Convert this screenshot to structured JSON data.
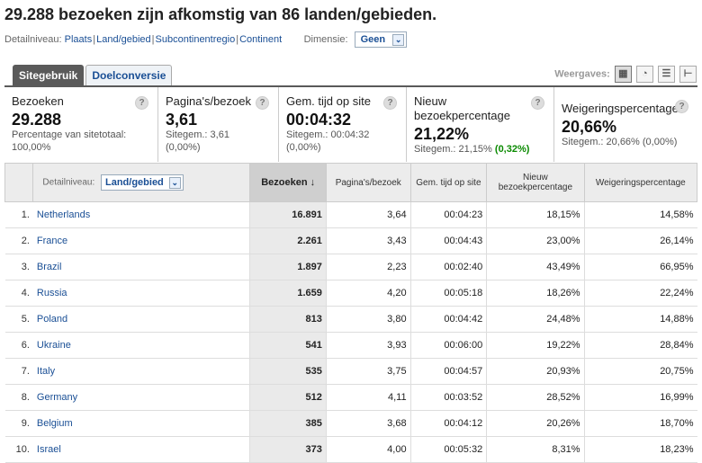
{
  "title": "29.288 bezoeken zijn afkomstig van 86 landen/gebieden.",
  "detail": {
    "label": "Detailniveau:",
    "links": [
      "Plaats",
      "Land/gebied",
      "Subcontinentregio",
      "Continent"
    ],
    "dimension_label": "Dimensie:",
    "dimension_value": "Geen"
  },
  "tabs": [
    "Sitegebruik",
    "Doelconversie"
  ],
  "views_label": "Weergaves:",
  "summary": [
    {
      "label": "Bezoeken",
      "value": "29.288",
      "sub1": "Percentage van sitetotaal:",
      "sub2": "100,00%"
    },
    {
      "label": "Pagina's/bezoek",
      "value": "3,61",
      "sub1": "Sitegem.: 3,61",
      "sub2": "(0,00%)"
    },
    {
      "label": "Gem. tijd op site",
      "value": "00:04:32",
      "sub1": "Sitegem.: 00:04:32",
      "sub2": "(0,00%)"
    },
    {
      "label": "Nieuw bezoekpercentage",
      "value": "21,22%",
      "sub1": "Sitegem.: 21,15%",
      "sub2": "(0,32%)"
    },
    {
      "label": "Weigeringspercentage",
      "value": "20,66%",
      "sub1": "Sitegem.: 20,66% (0,00%)",
      "sub2": ""
    }
  ],
  "table": {
    "dim_label": "Detailniveau:",
    "dim_value": "Land/gebied",
    "headers": [
      "Bezoeken",
      "Pagina's/bezoek",
      "Gem. tijd op site",
      "Nieuw bezoekpercentage",
      "Weigeringspercentage"
    ],
    "rows": [
      {
        "idx": "1.",
        "country": "Netherlands",
        "visits": "16.891",
        "pages": "3,64",
        "time": "00:04:23",
        "new": "18,15%",
        "bounce": "14,58%"
      },
      {
        "idx": "2.",
        "country": "France",
        "visits": "2.261",
        "pages": "3,43",
        "time": "00:04:43",
        "new": "23,00%",
        "bounce": "26,14%"
      },
      {
        "idx": "3.",
        "country": "Brazil",
        "visits": "1.897",
        "pages": "2,23",
        "time": "00:02:40",
        "new": "43,49%",
        "bounce": "66,95%"
      },
      {
        "idx": "4.",
        "country": "Russia",
        "visits": "1.659",
        "pages": "4,20",
        "time": "00:05:18",
        "new": "18,26%",
        "bounce": "22,24%"
      },
      {
        "idx": "5.",
        "country": "Poland",
        "visits": "813",
        "pages": "3,80",
        "time": "00:04:42",
        "new": "24,48%",
        "bounce": "14,88%"
      },
      {
        "idx": "6.",
        "country": "Ukraine",
        "visits": "541",
        "pages": "3,93",
        "time": "00:06:00",
        "new": "19,22%",
        "bounce": "28,84%"
      },
      {
        "idx": "7.",
        "country": "Italy",
        "visits": "535",
        "pages": "3,75",
        "time": "00:04:57",
        "new": "20,93%",
        "bounce": "20,75%"
      },
      {
        "idx": "8.",
        "country": "Germany",
        "visits": "512",
        "pages": "4,11",
        "time": "00:03:52",
        "new": "28,52%",
        "bounce": "16,99%"
      },
      {
        "idx": "9.",
        "country": "Belgium",
        "visits": "385",
        "pages": "3,68",
        "time": "00:04:12",
        "new": "20,26%",
        "bounce": "18,70%"
      },
      {
        "idx": "10.",
        "country": "Israel",
        "visits": "373",
        "pages": "4,00",
        "time": "00:05:32",
        "new": "8,31%",
        "bounce": "18,23%"
      }
    ]
  }
}
